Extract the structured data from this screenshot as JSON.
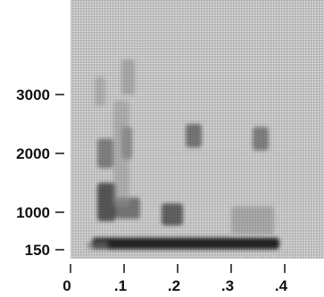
{
  "chart_data": {
    "type": "heatmap",
    "title": "",
    "xlabel": "",
    "ylabel": "",
    "xlim": [
      0,
      0.47
    ],
    "ylim": [
      150,
      4000
    ],
    "x_ticks": [
      {
        "value": 0,
        "label": "0"
      },
      {
        "value": 0.1,
        "label": ".1"
      },
      {
        "value": 0.2,
        "label": ".2"
      },
      {
        "value": 0.3,
        "label": ".3"
      },
      {
        "value": 0.4,
        "label": ".4"
      }
    ],
    "y_ticks": [
      {
        "value": 150,
        "label": "150"
      },
      {
        "value": 1000,
        "label": "1000"
      },
      {
        "value": 2000,
        "label": "2000"
      },
      {
        "value": 3000,
        "label": "3000"
      }
    ],
    "energy_regions": [
      {
        "x": [
          0.04,
          0.39
        ],
        "y": [
          160,
          420
        ],
        "intensity": 0.95
      },
      {
        "x": [
          0.03,
          0.07
        ],
        "y": [
          160,
          330
        ],
        "intensity": 0.4
      },
      {
        "x": [
          0.05,
          0.085
        ],
        "y": [
          800,
          1500
        ],
        "intensity": 0.75
      },
      {
        "x": [
          0.085,
          0.13
        ],
        "y": [
          850,
          1250
        ],
        "intensity": 0.6
      },
      {
        "x": [
          0.17,
          0.21
        ],
        "y": [
          700,
          1150
        ],
        "intensity": 0.7
      },
      {
        "x": [
          0.05,
          0.08
        ],
        "y": [
          1750,
          2250
        ],
        "intensity": 0.55
      },
      {
        "x": [
          0.095,
          0.115
        ],
        "y": [
          1900,
          2450
        ],
        "intensity": 0.5
      },
      {
        "x": [
          0.215,
          0.245
        ],
        "y": [
          2100,
          2500
        ],
        "intensity": 0.6
      },
      {
        "x": [
          0.34,
          0.37
        ],
        "y": [
          2050,
          2450
        ],
        "intensity": 0.55
      },
      {
        "x": [
          0.095,
          0.12
        ],
        "y": [
          3000,
          3600
        ],
        "intensity": 0.3
      },
      {
        "x": [
          0.045,
          0.065
        ],
        "y": [
          2800,
          3300
        ],
        "intensity": 0.25
      },
      {
        "x": [
          0.08,
          0.11
        ],
        "y": [
          1100,
          2900
        ],
        "intensity": 0.25
      },
      {
        "x": [
          0.3,
          0.38
        ],
        "y": [
          500,
          1100
        ],
        "intensity": 0.3
      }
    ],
    "grid": false,
    "legend": "none"
  }
}
